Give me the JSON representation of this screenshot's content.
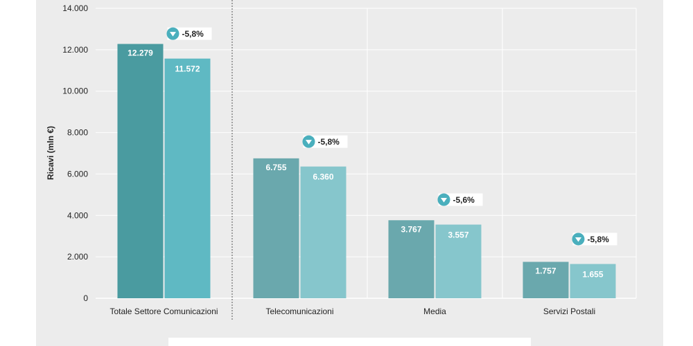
{
  "chart_data": {
    "type": "bar",
    "ylabel": "Ricavi (mln €)",
    "ylim": [
      0,
      14000
    ],
    "yticks": [
      "0",
      "2.000",
      "4.000",
      "6.000",
      "8.000",
      "10.000",
      "12.000",
      "14.000"
    ],
    "grid": true,
    "categories": [
      "Totale Settore Comunicazioni",
      "Telecomunicazioni",
      "Media",
      "Servizi Postali"
    ],
    "series": [
      {
        "values": [
          12279,
          6755,
          3767,
          1757
        ],
        "labels": [
          "12.279",
          "6.755",
          "3.767",
          "1.757"
        ]
      },
      {
        "values": [
          11572,
          6360,
          3557,
          1655
        ],
        "labels": [
          "11.572",
          "6.360",
          "3.557",
          "1.655"
        ]
      }
    ],
    "changes": [
      "-5,8%",
      "-5,8%",
      "-5,6%",
      "-5,8%"
    ],
    "change_icon": "down-arrow-circle-icon",
    "colors": {
      "total_series1": "#4a9ba0",
      "total_series2": "#5fb9c3",
      "series1": "#6aa8ad",
      "series2": "#86c6cc",
      "badge": "#4aafbd"
    }
  }
}
